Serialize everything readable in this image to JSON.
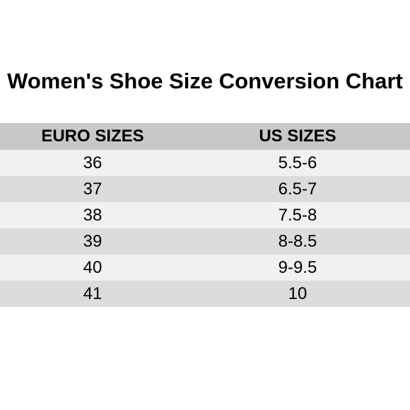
{
  "title": "Women's Shoe Size Conversion Chart",
  "table": {
    "headers": [
      "EURO SIZES",
      "US SIZES"
    ],
    "rows": [
      [
        "36",
        "5.5-6"
      ],
      [
        "37",
        "6.5-7"
      ],
      [
        "38",
        "7.5-8"
      ],
      [
        "39",
        "8-8.5"
      ],
      [
        "40",
        "9-9.5"
      ],
      [
        "41",
        "10"
      ]
    ]
  },
  "colors": {
    "header_bg": "#c8c8c8",
    "row_light": "#f1f1f1",
    "row_dark": "#dcdcdc"
  }
}
